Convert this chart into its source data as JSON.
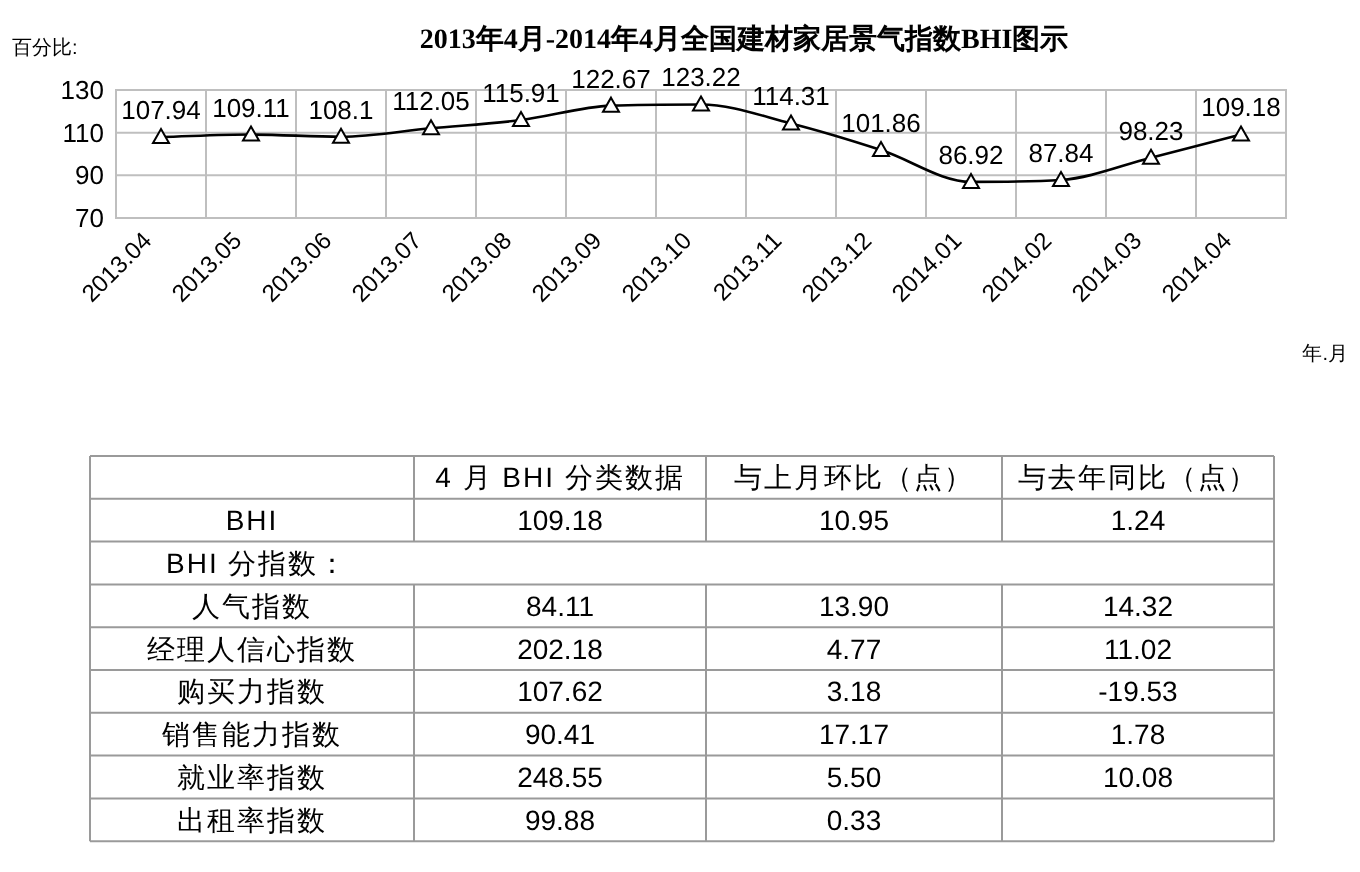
{
  "chart_data": [
    {
      "type": "line",
      "title": "2013年4月-2014年4月全国建材家居景气指数BHI图示",
      "ylabel": "百分比:",
      "xlabel": "年.月",
      "categories": [
        "2013.04",
        "2013.05",
        "2013.06",
        "2013.07",
        "2013.08",
        "2013.09",
        "2013.10",
        "2013.11",
        "2013.12",
        "2014.01",
        "2014.02",
        "2014.03",
        "2014.04"
      ],
      "series": [
        {
          "color": "#000000",
          "values": [
            107.94,
            109.11,
            108.1,
            112.05,
            115.91,
            122.67,
            123.22,
            114.31,
            101.86,
            86.92,
            87.84,
            98.23,
            109.18
          ]
        }
      ],
      "ylim": [
        70,
        130
      ],
      "yticks": [
        70,
        90,
        110,
        130
      ],
      "grid": true,
      "marker": "triangle",
      "line_style": "solid",
      "data_labels": true
    },
    {
      "type": "other",
      "categories": [
        "4 月 BHI 分类数据",
        "与上月环比（点）",
        "与去年同比（点）"
      ],
      "y_categories": [
        "BHI",
        "BHI 分指数：",
        "人气指数",
        "经理人信心指数",
        "购买力指数",
        "销售能力指数",
        "就业率指数",
        "出租率指数"
      ],
      "cell_labels": [
        [
          "109.18",
          "10.95",
          "1.24"
        ],
        [
          null,
          null,
          null
        ],
        [
          "84.11",
          "13.90",
          "14.32"
        ],
        [
          "202.18",
          "4.77",
          "11.02"
        ],
        [
          "107.62",
          "3.18",
          "-19.53"
        ],
        [
          "90.41",
          "17.17",
          "1.78"
        ],
        [
          "248.55",
          "5.50",
          "10.08"
        ],
        [
          "99.88",
          "0.33",
          null
        ]
      ]
    }
  ]
}
